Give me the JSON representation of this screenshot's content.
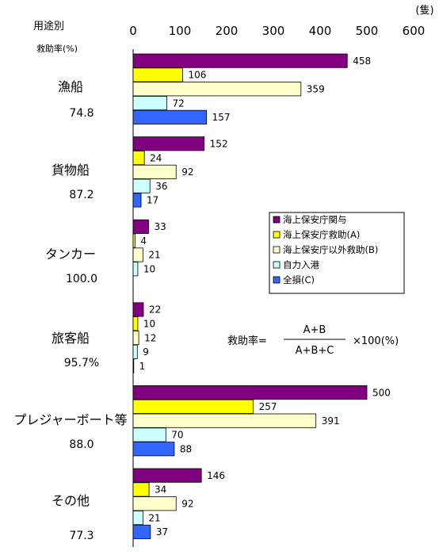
{
  "chart_data": {
    "type": "bar",
    "orientation": "horizontal",
    "header_label": "用途別",
    "subheader_label": "救助率(%)",
    "unit": "(隻)",
    "xlim": [
      0,
      600
    ],
    "xticks": [
      0,
      100,
      200,
      300,
      400,
      500,
      600
    ],
    "grid": false,
    "legend_position": "right-middle",
    "categories": [
      "漁船",
      "貨物船",
      "タンカー",
      "旅客船",
      "プレジャーボート等",
      "その他"
    ],
    "rescue_rates": [
      "74.8",
      "87.2",
      "100.0",
      "95.7%",
      "88.0",
      "77.3"
    ],
    "series": [
      {
        "name": "海上保安庁関与",
        "color": "#800080",
        "values": [
          458,
          152,
          33,
          22,
          500,
          146
        ]
      },
      {
        "name": "海上保安庁救助(A)",
        "color": "#ffff00",
        "values": [
          106,
          24,
          4,
          10,
          257,
          34
        ]
      },
      {
        "name": "海上保安庁以外救助(B)",
        "color": "#ffffcc",
        "values": [
          359,
          92,
          21,
          12,
          391,
          92
        ]
      },
      {
        "name": "自力入港",
        "color": "#ccffff",
        "values": [
          72,
          36,
          10,
          9,
          70,
          21
        ]
      },
      {
        "name": "全損(C)",
        "color": "#3366ff",
        "values": [
          157,
          17,
          null,
          1,
          88,
          37
        ]
      }
    ],
    "formula": {
      "lhs": "救助率=",
      "numerator": "A+B",
      "denominator": "A+B+C",
      "suffix": "×100(%)"
    }
  }
}
